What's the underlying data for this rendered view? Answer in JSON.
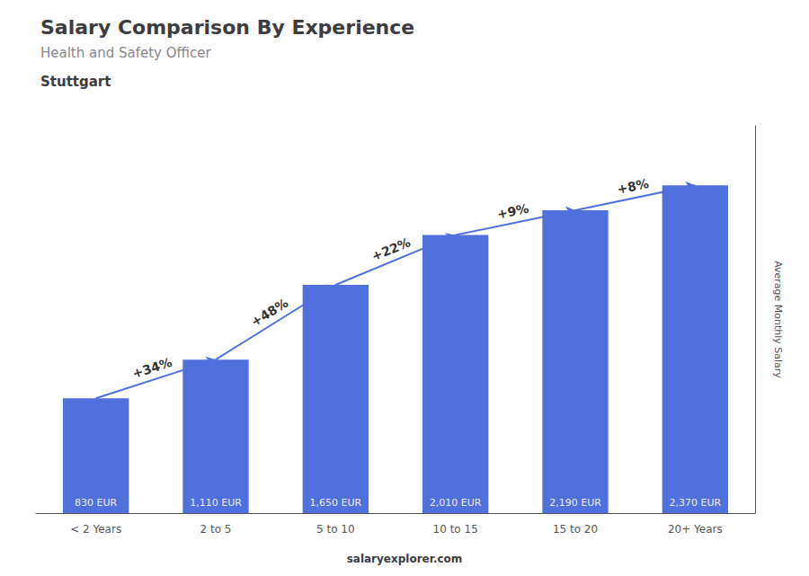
{
  "chart_data": {
    "type": "bar",
    "title": "Salary Comparison By Experience",
    "subtitle": "Health and Safety Officer",
    "city": "Stuttgart",
    "categories": [
      "< 2 Years",
      "2 to 5",
      "5 to 10",
      "10 to 15",
      "15 to 20",
      "20+ Years"
    ],
    "values": [
      830,
      1110,
      1650,
      2010,
      2190,
      2370
    ],
    "value_labels": [
      "830 EUR",
      "1,110 EUR",
      "1,650 EUR",
      "2,010 EUR",
      "2,190 EUR",
      "2,370 EUR"
    ],
    "data_labels": true,
    "pct_changes": [
      "+34%",
      "+48%",
      "+22%",
      "+9%",
      "+8%"
    ],
    "ylabel": "Average Monthly Salary",
    "watermark": "salaryexplorer.com",
    "ylim": [
      0,
      2800
    ],
    "yticks": [],
    "tick_labels": "x",
    "grid": false
  }
}
